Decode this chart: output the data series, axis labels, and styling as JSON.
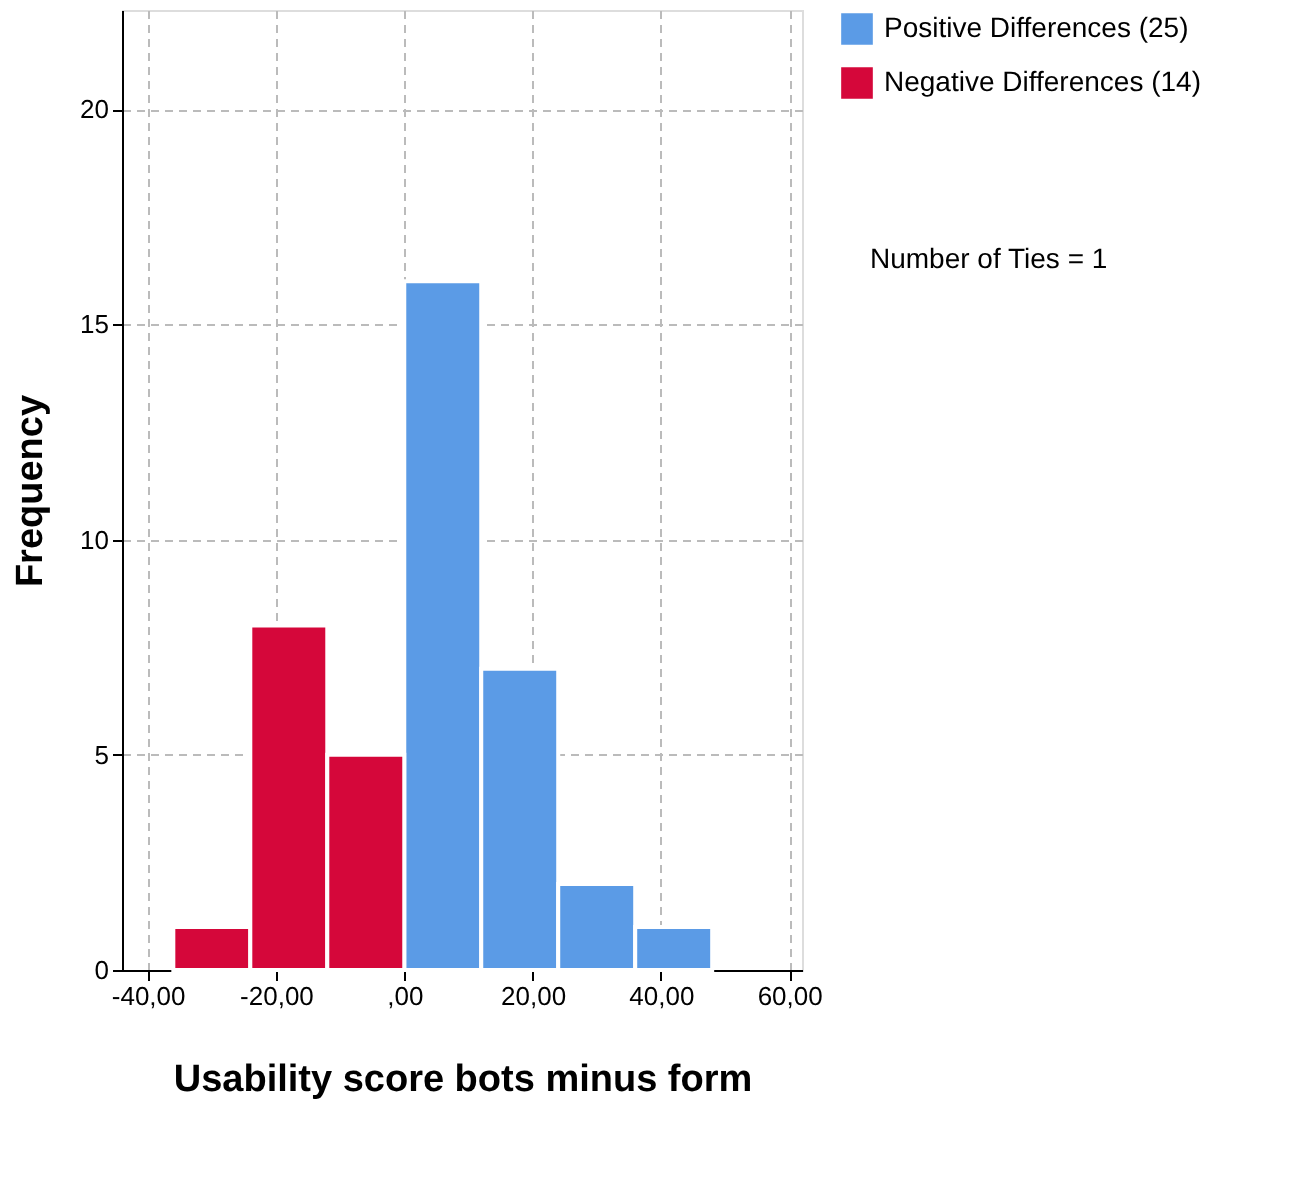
{
  "chart_data": {
    "type": "histogram",
    "xlabel": "Usability score bots minus form",
    "ylabel": "Frequency",
    "bins": [
      -36,
      -24,
      -12,
      0,
      12,
      24,
      36,
      48
    ],
    "series": [
      {
        "name": "Positive Differences (25)",
        "color": "#5b9be6",
        "values": [
          null,
          null,
          null,
          16,
          7,
          2,
          1
        ]
      },
      {
        "name": "Negative Differences (14)",
        "color": "#d5073a",
        "values": [
          1,
          8,
          5,
          null,
          null,
          null,
          null
        ]
      }
    ],
    "xlim": [
      -44,
      62
    ],
    "xticks": [
      {
        "value": -40,
        "label": "-40,00"
      },
      {
        "value": -20,
        "label": "-20,00"
      },
      {
        "value": 0,
        "label": ",00"
      },
      {
        "value": 20,
        "label": "20,00"
      },
      {
        "value": 40,
        "label": "40,00"
      },
      {
        "value": 60,
        "label": "60,00"
      }
    ],
    "ylim": [
      0,
      22.3
    ],
    "yticks": [
      0,
      5,
      10,
      15,
      20
    ],
    "grid": true,
    "legend": "top right",
    "annotations": [
      "Number of Ties = 1"
    ]
  }
}
